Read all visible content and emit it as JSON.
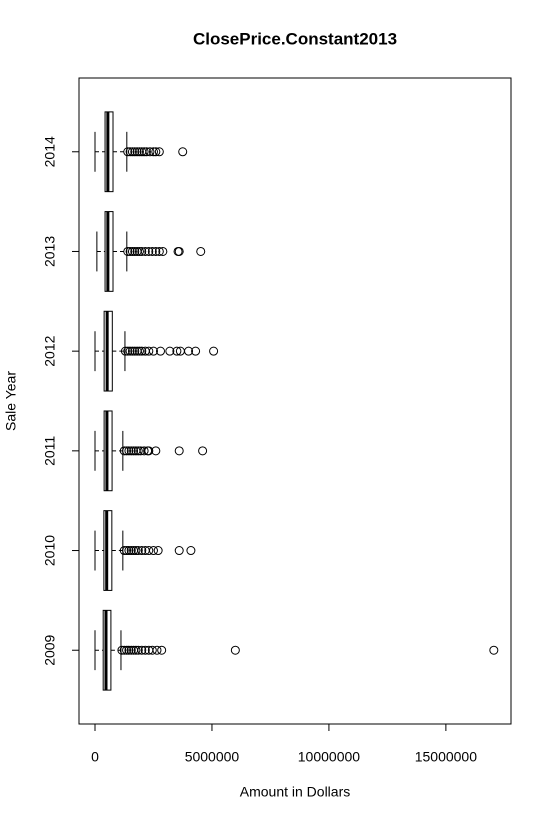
{
  "chart_data": {
    "type": "boxplot",
    "title": "ClosePrice.Constant2013",
    "x_label": "Amount in Dollars",
    "y_label": "Sale Year",
    "orientation": "horizontal",
    "color": "#000000",
    "categories": [
      "2009",
      "2010",
      "2011",
      "2012",
      "2013",
      "2014"
    ],
    "boxes": [
      {
        "whisker_low": 0,
        "q1": 350000,
        "median": 470000,
        "q3": 680000,
        "whisker_high": 1110000,
        "outliers": [
          1150000,
          1250000,
          1350000,
          1450000,
          1550000,
          1650000,
          1750000,
          1850000,
          2000000,
          2150000,
          2300000,
          2450000,
          2650000,
          2850000,
          6000000,
          17050000
        ]
      },
      {
        "whisker_low": 0,
        "q1": 380000,
        "median": 500000,
        "q3": 720000,
        "whisker_high": 1190000,
        "outliers": [
          1250000,
          1350000,
          1450000,
          1550000,
          1650000,
          1750000,
          1850000,
          2000000,
          2150000,
          2300000,
          2500000,
          2700000,
          3600000,
          4100000
        ]
      },
      {
        "whisker_low": 0,
        "q1": 390000,
        "median": 510000,
        "q3": 730000,
        "whisker_high": 1190000,
        "outliers": [
          1250000,
          1350000,
          1450000,
          1550000,
          1650000,
          1750000,
          1850000,
          1950000,
          2100000,
          2250000,
          2300000,
          2600000,
          3600000,
          4600000
        ]
      },
      {
        "whisker_low": 0,
        "q1": 390000,
        "median": 520000,
        "q3": 740000,
        "whisker_high": 1280000,
        "outliers": [
          1300000,
          1400000,
          1500000,
          1600000,
          1700000,
          1800000,
          1900000,
          2000000,
          2150000,
          2300000,
          2500000,
          2800000,
          3200000,
          3500000,
          3650000,
          4000000,
          4300000,
          5070000
        ]
      },
      {
        "whisker_low": 80000,
        "q1": 430000,
        "median": 550000,
        "q3": 770000,
        "whisker_high": 1360000,
        "outliers": [
          1400000,
          1500000,
          1600000,
          1700000,
          1800000,
          1900000,
          2000000,
          2150000,
          2300000,
          2450000,
          2600000,
          2750000,
          2900000,
          3550000,
          3600000,
          4520000
        ]
      },
      {
        "whisker_low": 0,
        "q1": 430000,
        "median": 550000,
        "q3": 770000,
        "whisker_high": 1360000,
        "outliers": [
          1400000,
          1500000,
          1600000,
          1700000,
          1800000,
          1900000,
          2000000,
          2100000,
          2200000,
          2350000,
          2500000,
          2600000,
          2750000,
          3750000
        ]
      }
    ],
    "xlim": [
      -684000,
      17784000
    ],
    "xticks": [
      0,
      5000000,
      10000000,
      15000000
    ]
  }
}
